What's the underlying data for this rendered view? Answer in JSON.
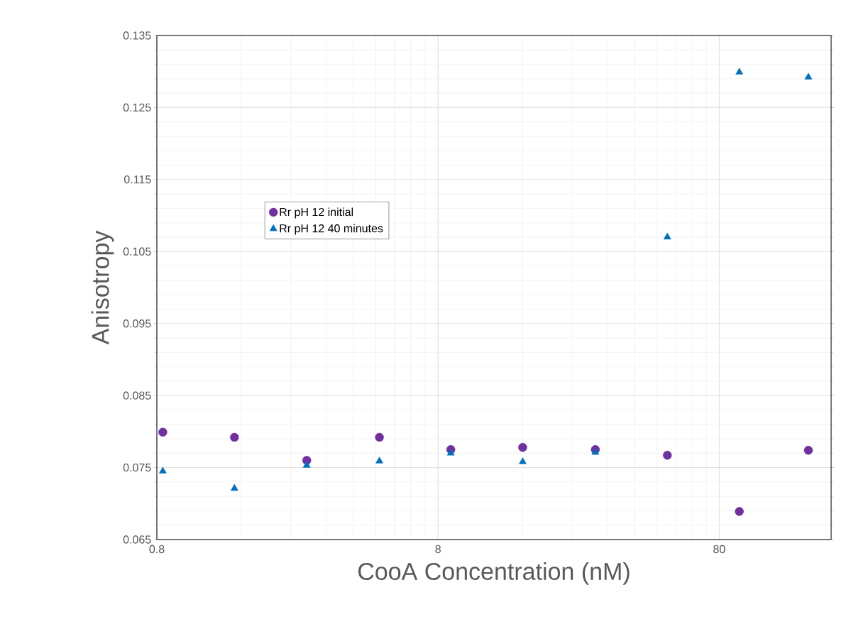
{
  "chart_data": {
    "type": "scatter",
    "xlabel": "CooA Concentration (nM)",
    "ylabel": "Anisotropy",
    "x": [
      0.84,
      1.51,
      2.73,
      4.95,
      8.88,
      16.0,
      29.0,
      52.3,
      94.3,
      166
    ],
    "series": [
      {
        "name": "Rr pH 12 initial",
        "color": "#7030a0",
        "marker": "circle",
        "values": [
          0.0799,
          0.0792,
          0.076,
          0.0792,
          0.0775,
          0.0778,
          0.0775,
          0.0767,
          0.0689,
          0.0774
        ]
      },
      {
        "name": "Rr pH 12 40 minutes",
        "color": "#0070c0",
        "marker": "triangle",
        "values": [
          0.0745,
          0.0721,
          0.0753,
          0.0759,
          0.077,
          0.0758,
          0.0771,
          0.107,
          0.1299,
          0.1292
        ]
      }
    ],
    "log": "x",
    "xlim": [
      0.8,
      200
    ],
    "xticks": [
      0.8,
      8,
      80
    ],
    "ylim": [
      0.065,
      0.135
    ],
    "yticks": [
      0.065,
      0.075,
      0.085,
      0.095,
      0.105,
      0.115,
      0.125,
      0.135
    ],
    "grid": true,
    "legend": "top left"
  }
}
